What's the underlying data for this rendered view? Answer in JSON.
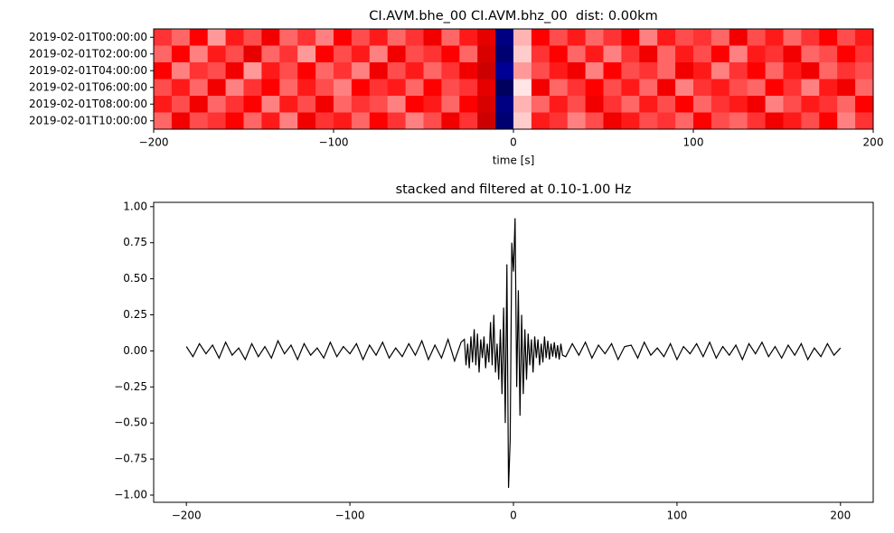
{
  "chart_data": [
    {
      "type": "heatmap",
      "title": "CI.AVM.bhe_00 CI.AVM.bhz_00  dist: 0.00km",
      "xlabel": "time [s]",
      "categories": [
        "2019-02-01T00:00:00",
        "2019-02-01T02:00:00",
        "2019-02-01T04:00:00",
        "2019-02-01T06:00:00",
        "2019-02-01T08:00:00",
        "2019-02-01T10:00:00"
      ],
      "colormap": "seismic",
      "clim": [
        -1,
        1
      ],
      "xlim": [
        -200,
        200
      ],
      "xticks": [
        {
          "value": -200,
          "label": "−200"
        },
        {
          "value": -100,
          "label": "−100"
        },
        0,
        100,
        200
      ],
      "values": [
        [
          0.4,
          0.3,
          0.5,
          0.2,
          0.45,
          0.35,
          0.55,
          0.3,
          0.4,
          0.25,
          0.5,
          0.35,
          0.45,
          0.3,
          0.4,
          0.55,
          0.3,
          0.45,
          0.6,
          -0.85,
          0.15,
          0.5,
          0.35,
          0.45,
          0.3,
          0.4,
          0.5,
          0.25,
          0.45,
          0.35,
          0.4,
          0.3,
          0.55,
          0.35,
          0.45,
          0.3,
          0.4,
          0.5,
          0.35,
          0.45
        ],
        [
          0.3,
          0.5,
          0.25,
          0.45,
          0.35,
          0.6,
          0.3,
          0.4,
          0.2,
          0.5,
          0.35,
          0.45,
          0.25,
          0.55,
          0.35,
          0.4,
          0.5,
          0.3,
          0.65,
          -0.9,
          0.1,
          0.4,
          0.5,
          0.3,
          0.45,
          0.25,
          0.4,
          0.55,
          0.3,
          0.45,
          0.35,
          0.5,
          0.25,
          0.45,
          0.4,
          0.55,
          0.3,
          0.35,
          0.5,
          0.4
        ],
        [
          0.5,
          0.25,
          0.4,
          0.35,
          0.55,
          0.2,
          0.45,
          0.35,
          0.5,
          0.3,
          0.4,
          0.25,
          0.55,
          0.35,
          0.45,
          0.3,
          0.4,
          0.55,
          0.7,
          -0.8,
          0.2,
          0.35,
          0.45,
          0.55,
          0.25,
          0.5,
          0.35,
          0.4,
          0.3,
          0.55,
          0.45,
          0.25,
          0.4,
          0.5,
          0.3,
          0.45,
          0.55,
          0.3,
          0.4,
          0.35
        ],
        [
          0.35,
          0.45,
          0.3,
          0.55,
          0.25,
          0.4,
          0.5,
          0.3,
          0.45,
          0.35,
          0.25,
          0.5,
          0.4,
          0.45,
          0.3,
          0.5,
          0.35,
          0.4,
          0.6,
          -0.95,
          0.05,
          0.55,
          0.3,
          0.4,
          0.5,
          0.35,
          0.45,
          0.3,
          0.55,
          0.25,
          0.4,
          0.45,
          0.35,
          0.3,
          0.5,
          0.4,
          0.25,
          0.45,
          0.55,
          0.3
        ],
        [
          0.45,
          0.35,
          0.55,
          0.3,
          0.4,
          0.5,
          0.25,
          0.45,
          0.35,
          0.55,
          0.3,
          0.4,
          0.35,
          0.25,
          0.5,
          0.45,
          0.3,
          0.5,
          0.65,
          -0.85,
          0.15,
          0.3,
          0.45,
          0.35,
          0.55,
          0.4,
          0.3,
          0.45,
          0.35,
          0.5,
          0.3,
          0.4,
          0.45,
          0.55,
          0.25,
          0.35,
          0.45,
          0.4,
          0.3,
          0.5
        ],
        [
          0.3,
          0.55,
          0.35,
          0.4,
          0.5,
          0.3,
          0.45,
          0.25,
          0.55,
          0.4,
          0.45,
          0.3,
          0.5,
          0.4,
          0.25,
          0.35,
          0.55,
          0.4,
          0.7,
          -0.9,
          0.1,
          0.45,
          0.4,
          0.25,
          0.35,
          0.55,
          0.45,
          0.35,
          0.4,
          0.3,
          0.5,
          0.35,
          0.3,
          0.4,
          0.55,
          0.45,
          0.35,
          0.5,
          0.25,
          0.4
        ]
      ]
    },
    {
      "type": "line",
      "title": "stacked and filtered at 0.10-1.00 Hz",
      "color": "#000000",
      "xlim": [
        -220,
        220
      ],
      "xticks": [
        {
          "value": -200,
          "label": "−200"
        },
        {
          "value": -100,
          "label": "−100"
        },
        0,
        100,
        200
      ],
      "ylim": [
        -1.05,
        1.03
      ],
      "yticks": [
        {
          "value": -1,
          "label": "−1.00"
        },
        {
          "value": -0.75,
          "label": "−0.75"
        },
        {
          "value": -0.5,
          "label": "−0.50"
        },
        {
          "value": -0.25,
          "label": "−0.25"
        },
        {
          "value": 0,
          "label": "0.00"
        },
        0.25,
        {
          "value": 0.5,
          "label": "0.50"
        },
        0.75,
        {
          "value": 1,
          "label": "1.00"
        }
      ],
      "x": [
        -200,
        -196,
        -192,
        -188,
        -184,
        -180,
        -176,
        -172,
        -168,
        -164,
        -160,
        -156,
        -152,
        -148,
        -144,
        -140,
        -136,
        -132,
        -128,
        -124,
        -120,
        -116,
        -112,
        -108,
        -104,
        -100,
        -96,
        -92,
        -88,
        -84,
        -80,
        -76,
        -72,
        -68,
        -64,
        -60,
        -56,
        -52,
        -48,
        -44,
        -40,
        -36,
        -32,
        -30,
        -29,
        -28,
        -27,
        -26,
        -25,
        -24,
        -23,
        -22,
        -21,
        -20,
        -19,
        -18,
        -17,
        -16,
        -15,
        -14,
        -13,
        -12,
        -11,
        -10,
        -9,
        -8,
        -7,
        -6,
        -5,
        -4,
        -3,
        -2,
        -1,
        0,
        1,
        2,
        3,
        4,
        5,
        6,
        7,
        8,
        9,
        10,
        11,
        12,
        13,
        14,
        15,
        16,
        17,
        18,
        19,
        20,
        21,
        22,
        23,
        24,
        25,
        26,
        27,
        28,
        29,
        30,
        32,
        36,
        40,
        44,
        48,
        52,
        56,
        60,
        64,
        68,
        72,
        76,
        80,
        84,
        88,
        92,
        96,
        100,
        104,
        108,
        112,
        116,
        120,
        124,
        128,
        132,
        136,
        140,
        144,
        148,
        152,
        156,
        160,
        164,
        168,
        172,
        176,
        180,
        184,
        188,
        192,
        196,
        200
      ],
      "values": [
        0.03,
        -0.04,
        0.05,
        -0.02,
        0.04,
        -0.05,
        0.06,
        -0.03,
        0.02,
        -0.06,
        0.05,
        -0.04,
        0.03,
        -0.05,
        0.07,
        -0.02,
        0.04,
        -0.06,
        0.05,
        -0.03,
        0.02,
        -0.05,
        0.06,
        -0.04,
        0.03,
        -0.02,
        0.05,
        -0.06,
        0.04,
        -0.03,
        0.06,
        -0.05,
        0.02,
        -0.04,
        0.05,
        -0.03,
        0.07,
        -0.06,
        0.04,
        -0.05,
        0.08,
        -0.07,
        0.06,
        0.08,
        -0.1,
        0.05,
        -0.12,
        0.1,
        -0.08,
        0.15,
        -0.1,
        0.12,
        -0.15,
        0.08,
        -0.05,
        0.1,
        -0.12,
        0.05,
        -0.08,
        0.2,
        -0.1,
        0.25,
        -0.15,
        0.05,
        -0.2,
        0.15,
        -0.3,
        0.3,
        -0.5,
        0.6,
        -0.95,
        -0.62,
        0.75,
        0.55,
        0.92,
        -0.25,
        0.42,
        -0.45,
        0.25,
        -0.3,
        0.15,
        -0.2,
        0.12,
        -0.1,
        0.08,
        -0.15,
        0.1,
        -0.05,
        0.08,
        -0.1,
        0.05,
        -0.08,
        0.1,
        -0.05,
        0.07,
        -0.06,
        0.05,
        -0.04,
        0.06,
        -0.05,
        0.04,
        -0.06,
        0.05,
        -0.03,
        -0.04,
        0.05,
        -0.03,
        0.06,
        -0.05,
        0.04,
        -0.02,
        0.05,
        -0.06,
        0.03,
        0.04,
        -0.05,
        0.06,
        -0.03,
        0.02,
        -0.04,
        0.05,
        -0.06,
        0.03,
        -0.02,
        0.05,
        -0.04,
        0.06,
        -0.05,
        0.03,
        -0.03,
        0.04,
        -0.06,
        0.05,
        -0.02,
        0.06,
        -0.04,
        0.03,
        -0.05,
        0.04,
        -0.03,
        0.05,
        -0.06,
        0.02,
        -0.04,
        0.05,
        -0.03,
        0.02
      ]
    }
  ]
}
